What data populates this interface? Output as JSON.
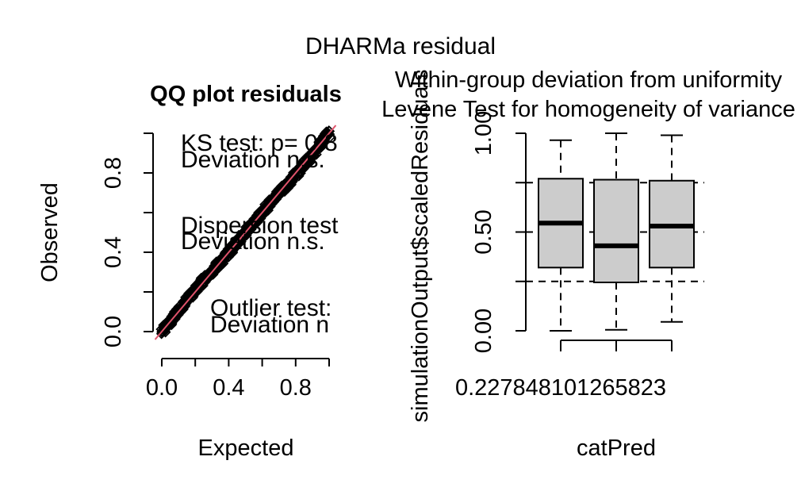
{
  "figure": {
    "main_title": "DHARMa residual"
  },
  "chart_data": [
    {
      "type": "scatter",
      "title": "QQ plot residuals",
      "xlabel": "Expected",
      "ylabel": "Observed",
      "xlim": [
        0,
        1
      ],
      "ylim": [
        0,
        1
      ],
      "xticks": [
        "0.0",
        "0.4",
        "0.8"
      ],
      "yticks": [
        "0.0",
        "0.4",
        "0.8"
      ],
      "reference_line_color": "#df536b",
      "point_color": "#000000",
      "x": [
        0.0,
        0.05,
        0.1,
        0.15,
        0.2,
        0.25,
        0.3,
        0.35,
        0.4,
        0.45,
        0.5,
        0.55,
        0.6,
        0.65,
        0.7,
        0.75,
        0.8,
        0.85,
        0.9,
        0.95,
        1.0
      ],
      "y": [
        0.0,
        0.05,
        0.1,
        0.16,
        0.21,
        0.26,
        0.3,
        0.35,
        0.4,
        0.45,
        0.5,
        0.55,
        0.6,
        0.65,
        0.7,
        0.74,
        0.79,
        0.84,
        0.89,
        0.95,
        1.0
      ],
      "annotations": [
        "KS test: p= 0.8",
        "Deviation n.s.",
        "Dispersion test",
        "Deviation  n.s.",
        "Outlier test:",
        "Deviation  n"
      ]
    },
    {
      "type": "box",
      "title": "Within-group deviation from uniformity",
      "subtitle": "Levene Test for homogeneity of variance",
      "xlabel": "catPred",
      "ylabel": "simulationOutput$scaledResiduals",
      "ylim": [
        0,
        1
      ],
      "yticks": [
        "0.00",
        "0.50",
        "1.00"
      ],
      "x_tick_label": "0.227848101265823",
      "reference_lines": [
        0.25,
        0.5,
        0.75
      ],
      "box_fill": "#cccccc",
      "groups": [
        {
          "whisker_low": 0.0,
          "q1": 0.32,
          "median": 0.545,
          "q3": 0.77,
          "whisker_high": 0.965
        },
        {
          "whisker_low": 0.005,
          "q1": 0.245,
          "median": 0.43,
          "q3": 0.765,
          "whisker_high": 1.0
        },
        {
          "whisker_low": 0.045,
          "q1": 0.32,
          "median": 0.53,
          "q3": 0.76,
          "whisker_high": 0.99
        }
      ]
    }
  ]
}
